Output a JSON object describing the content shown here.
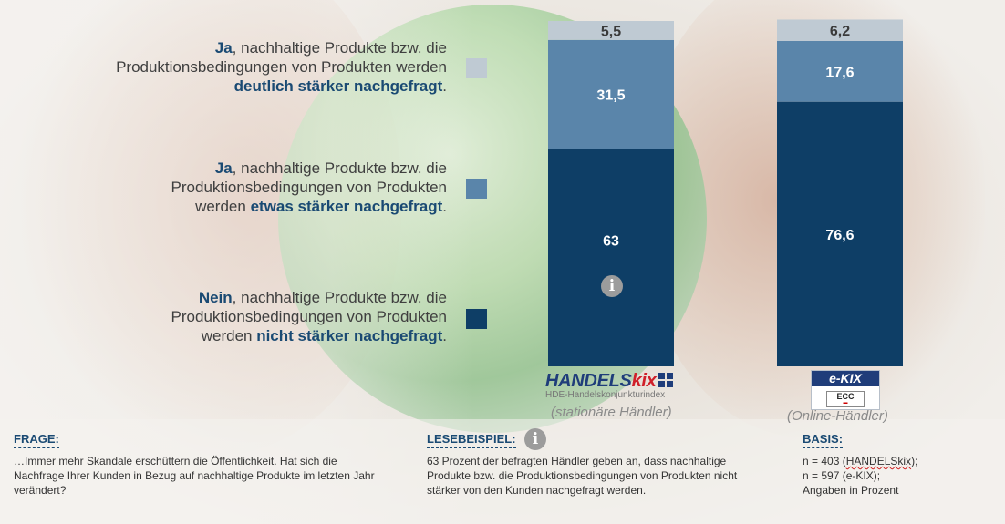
{
  "chart_data": {
    "type": "bar",
    "stacked": true,
    "categories": [
      "HANDELSkix (stationäre Händler)",
      "e-KIX (Online-Händler)"
    ],
    "series": [
      {
        "name": "Nein, nachhaltige Produkte bzw. die Produktionsbedingungen von Produkten werden nicht stärker nachgefragt.",
        "color": "#0e3e66",
        "values": [
          63,
          76.6
        ],
        "labels": [
          "63",
          "76,6"
        ]
      },
      {
        "name": "Ja, nachhaltige Produkte bzw. die Produktionsbedingungen von Produkten werden etwas stärker nachgefragt.",
        "color": "#5a85aa",
        "values": [
          31.5,
          17.6
        ],
        "labels": [
          "31,5",
          "17,6"
        ]
      },
      {
        "name": "Ja, nachhaltige Produkte bzw. die Produktionsbedingungen von Produkten werden deutlich stärker nachgefragt.",
        "color": "#bfcad3",
        "values": [
          5.5,
          6.2
        ],
        "labels": [
          "5,5",
          "6,2"
        ]
      }
    ],
    "ylim": [
      0,
      100
    ],
    "legend_position": "left"
  },
  "legend": [
    {
      "lead": "Ja",
      "line1_rest": ", nachhaltige  Produkte  bzw.  die",
      "line2": "Produktionsbedingungen von Produkten werden",
      "line3_pre": "",
      "line3_bold": "deutlich stärker nachgefragt",
      "line3_post": ".",
      "color": "#bfcad3"
    },
    {
      "lead": "Ja",
      "line1_rest": ", nachhaltige  Produkte  bzw.  die",
      "line2": "Produktionsbedingungen von Produkten",
      "line3_pre": "werden ",
      "line3_bold": "etwas stärker nachgefragt",
      "line3_post": ".",
      "color": "#5a85aa"
    },
    {
      "lead": "Nein",
      "line1_rest": ", nachhaltige  Produkte  bzw.  die",
      "line2": "Produktionsbedingungen von Produkten",
      "line3_pre": "werden ",
      "line3_bold": "nicht stärker nachgefragt",
      "line3_post": ".",
      "color": "#0e3e66"
    }
  ],
  "brands": {
    "handelskix": {
      "name_a": "HANDELS",
      "name_b": "kix",
      "subtitle": "HDE-Handelskonjunkturindex",
      "caption": "(stationäre Händler)"
    },
    "ekix": {
      "name": "e-KIX",
      "badge": "ECC",
      "caption": "(Online-Händler)"
    }
  },
  "info_icon_glyph": "i",
  "footer": {
    "frage": {
      "heading": "FRAGE:",
      "text": "…Immer mehr Skandale erschüttern die Öffentlichkeit. Hat sich die Nachfrage Ihrer Kunden in Bezug auf  nachhaltige Produkte im letzten Jahr verändert?"
    },
    "lesebeispiel": {
      "heading": "LESEBEISPIEL:",
      "text": "63 Prozent der befragten Händler geben an, dass nachhaltige Produkte bzw. die Produktionsbedingungen von Produkten nicht stärker  von den Kunden nachgefragt werden."
    },
    "basis": {
      "heading": "BASIS:",
      "line1_pre": "n = 403 (",
      "line1_word": "HANDELSkix",
      "line1_post": ");",
      "line2": "n = 597 (e-KIX);",
      "line3": "Angaben in Prozent"
    }
  }
}
